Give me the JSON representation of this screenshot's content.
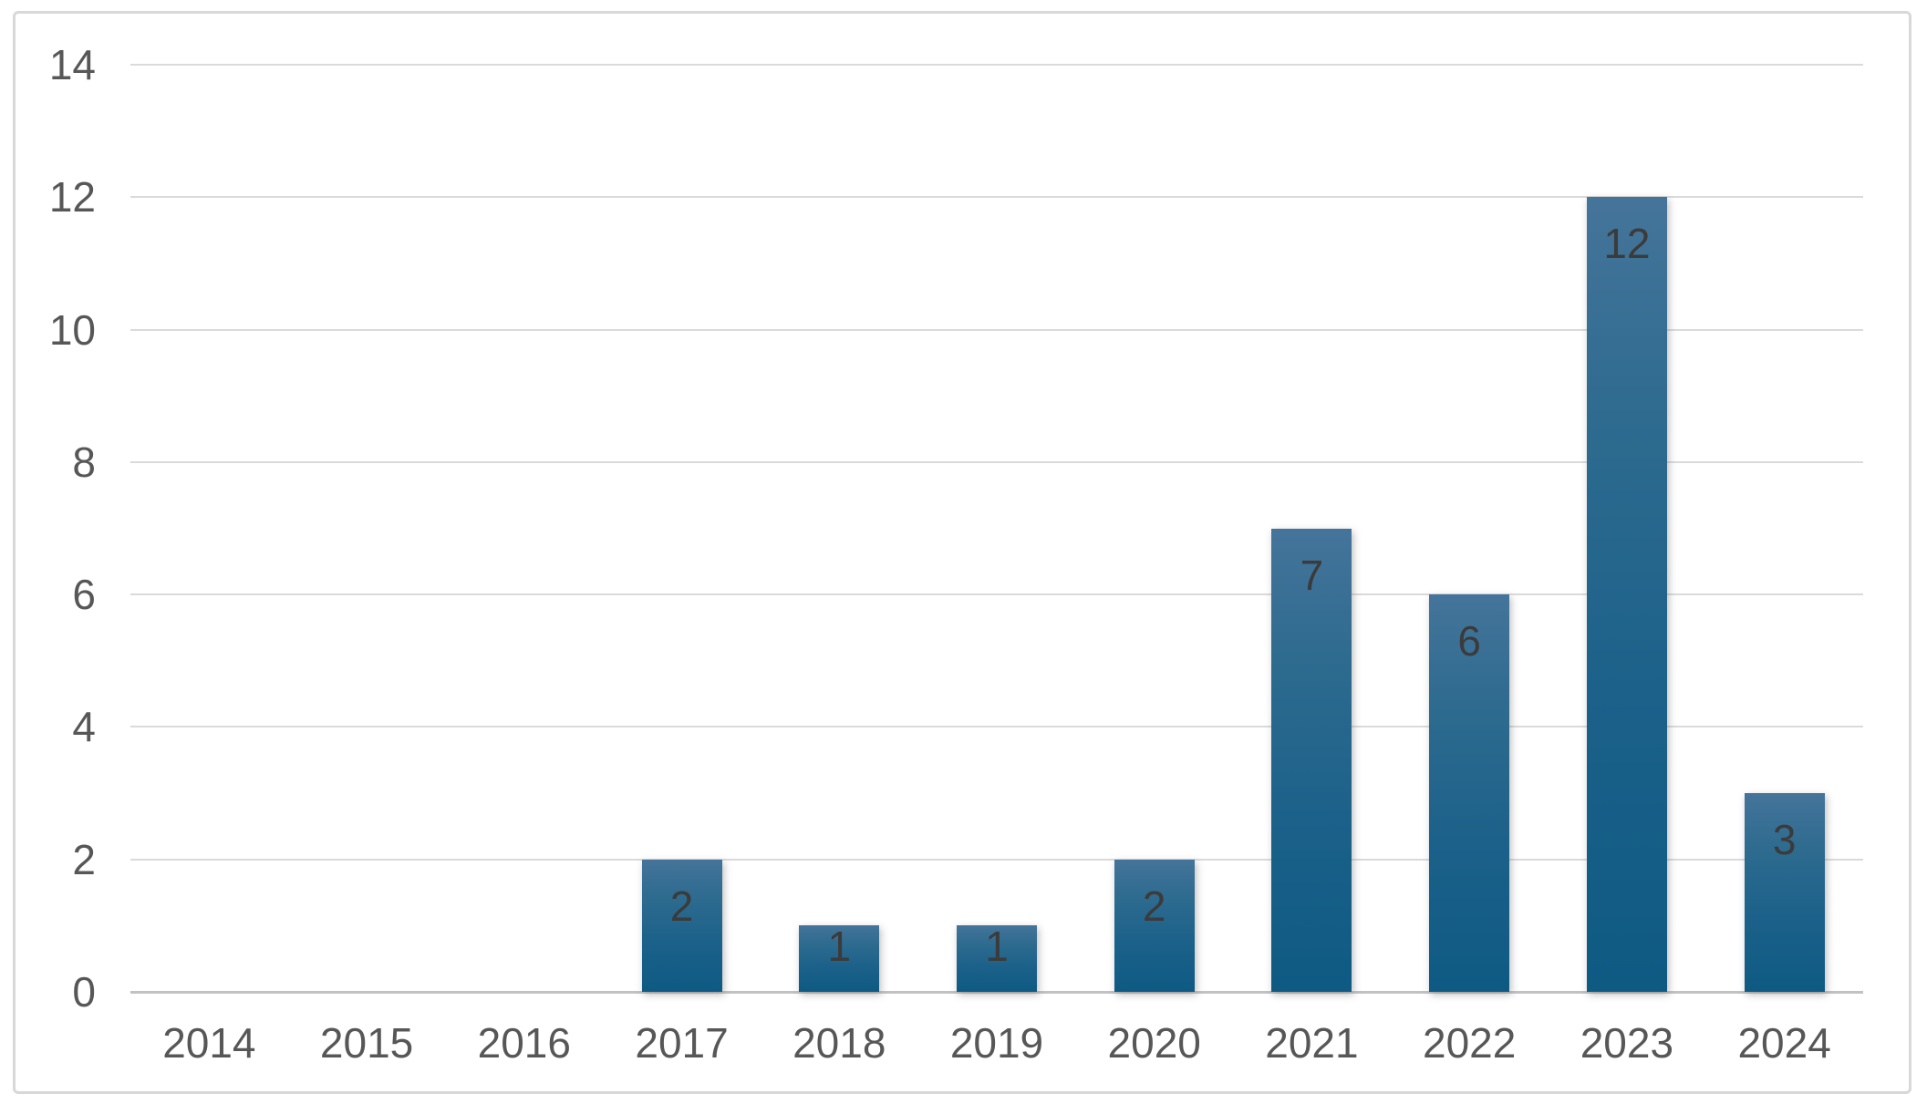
{
  "chart_data": {
    "type": "bar",
    "title": "",
    "xlabel": "",
    "ylabel": "",
    "categories": [
      "2014",
      "2015",
      "2016",
      "2017",
      "2018",
      "2019",
      "2020",
      "2021",
      "2022",
      "2023",
      "2024"
    ],
    "values": [
      0,
      0,
      0,
      2,
      1,
      1,
      2,
      7,
      6,
      12,
      3
    ],
    "data_labels": [
      "",
      "",
      "",
      "2",
      "1",
      "1",
      "2",
      "7",
      "6",
      "12",
      "3"
    ],
    "ylim": [
      0,
      14
    ],
    "yticks": [
      0,
      2,
      4,
      6,
      8,
      10,
      12,
      14
    ],
    "grid": true,
    "legend": false,
    "data_label_position": "inside-end",
    "colors": {
      "bar_gradient_top": "#45749A",
      "bar_gradient_bottom": "#0E5A83",
      "gridline": "#DADADA",
      "baseline": "#C2C2C2",
      "axis_label": "#575757",
      "data_label": "#3B3B3B",
      "frame_border": "#D8D8D8",
      "background": "#FFFFFF"
    }
  }
}
